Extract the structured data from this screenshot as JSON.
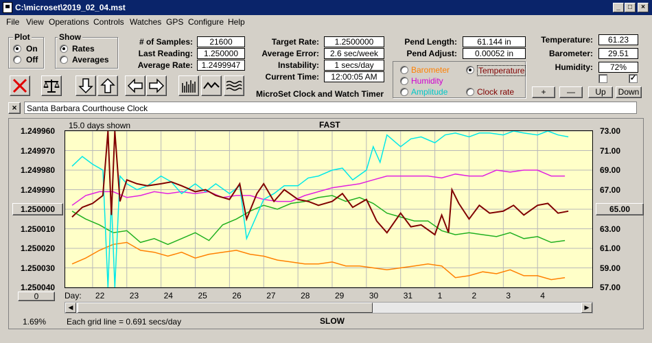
{
  "window": {
    "title": "C:\\microset\\2019_02_04.mst"
  },
  "menu": [
    "File",
    "View",
    "Operations",
    "Controls",
    "Watches",
    "GPS",
    "Configure",
    "Help"
  ],
  "plot_group": {
    "title": "Plot",
    "on": "On",
    "off": "Off",
    "selected": "On"
  },
  "show_group": {
    "title": "Show",
    "rates": "Rates",
    "averages": "Averages",
    "selected": "Rates"
  },
  "stats": {
    "samples_label": "# of Samples:",
    "samples": "21600",
    "last_label": "Last Reading:",
    "last": "1.250000",
    "avg_label": "Average Rate:",
    "avg": "1.2499947"
  },
  "rates": {
    "target_label": "Target Rate:",
    "target": "1.2500000",
    "err_label": "Average Error:",
    "err": "2.6 sec/week",
    "inst_label": "Instability:",
    "inst": "1 secs/day",
    "time_label": "Current Time:",
    "time": "12:00:05 AM"
  },
  "pend": {
    "length_label": "Pend Length:",
    "length": "61.144 in",
    "adjust_label": "Pend Adjust:",
    "adjust": "0.00052 in"
  },
  "env": {
    "temp_label": "Temperature:",
    "temp": "61.23",
    "baro_label": "Barometer:",
    "baro": "29.51",
    "hum_label": "Humidity:",
    "hum": "72%"
  },
  "series_select": {
    "barometer": "Barometer",
    "temperature": "Temperature",
    "humidity": "Humidity",
    "amplitude": "Amplitude",
    "clock_rate": "Clock rate",
    "selected": "Temperature"
  },
  "adjust_buttons": {
    "plus": "+",
    "minus": "—",
    "up": "Up",
    "down": "Down"
  },
  "program_title": "MicroSet Clock and Watch Timer",
  "clock_name": "Santa Barbara Courthouse Clock",
  "colors": {
    "barometer": "#ff8000",
    "humidity": "#e020e0",
    "amplitude": "#00e8e8",
    "temperature": "#800000",
    "clock_rate": "#20b020"
  },
  "icons": [
    "close-x-icon",
    "balance-scale-icon",
    "arrow-down-icon",
    "arrow-up-icon",
    "arrow-left-icon",
    "arrow-right-icon",
    "bar-graph-icon",
    "wave-icon",
    "multi-wave-icon"
  ],
  "chart_data": {
    "type": "line",
    "title": "FAST",
    "bottom_label": "SLOW",
    "days_shown": "15.0 days shown",
    "grid_note": "Each grid line = 0.691 secs/day",
    "percent": "1.69%",
    "xlabel": "Day:",
    "left_center_button": "1.250000",
    "right_center_button": "65.00",
    "bottom_left_button": "0",
    "x_ticks": [
      "22",
      "23",
      "24",
      "25",
      "26",
      "27",
      "28",
      "29",
      "30",
      "31",
      "1",
      "2",
      "3",
      "4"
    ],
    "y_left_ticks": [
      "1.249960",
      "1.249970",
      "1.249980",
      "1.249990",
      "1.250000",
      "1.250010",
      "1.250020",
      "1.250030",
      "1.250040"
    ],
    "y_right_ticks": [
      "73.00",
      "71.00",
      "69.00",
      "67.00",
      "65.00",
      "63.00",
      "61.00",
      "59.00",
      "57.00"
    ],
    "ylim_left": [
      1.24996,
      1.25004
    ],
    "ylim_right": [
      57,
      73
    ],
    "grid": true,
    "series": [
      {
        "name": "Temperature",
        "color": "#800000",
        "x": [
          21.4,
          21.7,
          22,
          22.3,
          22.45,
          22.55,
          22.65,
          22.8,
          23,
          23.3,
          23.6,
          24,
          24.3,
          24.6,
          25,
          25.3,
          25.6,
          26,
          26.3,
          26.5,
          26.8,
          27,
          27.3,
          27.6,
          28,
          28.3,
          28.6,
          29,
          29.3,
          29.6,
          30,
          30.3,
          30.6,
          31,
          31.3,
          31.6,
          32,
          32.2,
          32.4,
          32.5,
          32.7,
          33,
          33.3,
          33.6,
          34,
          34.3,
          34.6,
          35,
          35.3,
          35.6,
          35.9
        ],
        "y": [
          1.250004,
          1.249999,
          1.249997,
          1.249993,
          1.24996,
          1.250003,
          1.24996,
          1.249996,
          1.249985,
          1.249987,
          1.249988,
          1.249987,
          1.249986,
          1.249988,
          1.249991,
          1.24999,
          1.249993,
          1.249995,
          1.249987,
          1.250005,
          1.249992,
          1.249987,
          1.249996,
          1.24999,
          1.249995,
          1.249996,
          1.249998,
          1.249996,
          1.249992,
          1.249999,
          1.249995,
          1.250006,
          1.250012,
          1.250002,
          1.250009,
          1.250008,
          1.250013,
          1.250003,
          1.250012,
          1.24999,
          1.249997,
          1.250005,
          1.249998,
          1.250002,
          1.250001,
          1.249998,
          1.250003,
          1.249998,
          1.249997,
          1.250002,
          1.250001
        ]
      },
      {
        "name": "Clock rate",
        "color": "#20b020",
        "x": [
          21.4,
          21.8,
          22.2,
          22.6,
          23,
          23.4,
          23.8,
          24.2,
          24.6,
          25,
          25.4,
          25.8,
          26.2,
          26.6,
          27,
          27.4,
          27.8,
          28.2,
          28.6,
          29,
          29.4,
          29.8,
          30.2,
          30.6,
          31,
          31.4,
          31.8,
          32.2,
          32.6,
          33,
          33.4,
          33.8,
          34.2,
          34.6,
          35,
          35.4,
          35.8
        ],
        "y": [
          1.250001,
          1.250005,
          1.250008,
          1.250012,
          1.250011,
          1.250017,
          1.250015,
          1.250018,
          1.250015,
          1.250012,
          1.250016,
          1.250008,
          1.250005,
          1.250001,
          1.249998,
          1.25,
          1.249997,
          1.249996,
          1.249994,
          1.249993,
          1.249996,
          1.249994,
          1.249997,
          1.250002,
          1.250004,
          1.250006,
          1.250006,
          1.250011,
          1.250013,
          1.250012,
          1.250013,
          1.250014,
          1.250012,
          1.250015,
          1.250014,
          1.250017,
          1.250016
        ]
      },
      {
        "name": "Barometer",
        "color": "#ff8000",
        "x": [
          21.4,
          21.8,
          22.2,
          22.6,
          23,
          23.4,
          23.8,
          24.2,
          24.6,
          25,
          25.4,
          25.8,
          26.2,
          26.6,
          27,
          27.4,
          27.8,
          28.2,
          28.6,
          29,
          29.4,
          29.8,
          30.2,
          30.6,
          31,
          31.4,
          31.8,
          32.2,
          32.6,
          33,
          33.4,
          33.8,
          34.2,
          34.6,
          35,
          35.4,
          35.8
        ],
        "y": [
          1.250028,
          1.250025,
          1.250021,
          1.250018,
          1.250017,
          1.250021,
          1.250022,
          1.250024,
          1.250022,
          1.250025,
          1.250023,
          1.250022,
          1.250021,
          1.250023,
          1.250024,
          1.250026,
          1.250027,
          1.250028,
          1.250028,
          1.250027,
          1.250029,
          1.250029,
          1.25003,
          1.250031,
          1.25003,
          1.250029,
          1.250028,
          1.250029,
          1.250035,
          1.250034,
          1.250032,
          1.250033,
          1.250031,
          1.250034,
          1.250034,
          1.250036,
          1.250035
        ]
      },
      {
        "name": "Humidity",
        "color": "#e020e0",
        "x": [
          21.4,
          21.8,
          22.2,
          22.6,
          23,
          23.4,
          23.8,
          24.2,
          24.6,
          25,
          25.4,
          25.8,
          26.2,
          26.6,
          27,
          27.4,
          27.8,
          28.2,
          28.6,
          29,
          29.4,
          29.8,
          30.2,
          30.6,
          31,
          31.4,
          31.8,
          32.2,
          32.6,
          33,
          33.4,
          33.8,
          34.2,
          34.6,
          35,
          35.4,
          35.8
        ],
        "y": [
          1.249998,
          1.249993,
          1.249991,
          1.249991,
          1.249994,
          1.249993,
          1.249991,
          1.249992,
          1.249991,
          1.249992,
          1.249991,
          1.249994,
          1.249993,
          1.249993,
          1.249995,
          1.249996,
          1.249996,
          1.249993,
          1.249991,
          1.249989,
          1.249988,
          1.249987,
          1.249985,
          1.249983,
          1.249983,
          1.249983,
          1.249983,
          1.249984,
          1.249982,
          1.249983,
          1.249983,
          1.24998,
          1.249981,
          1.24998,
          1.24998,
          1.249983,
          1.249983
        ]
      },
      {
        "name": "Amplitude",
        "color": "#00e8e8",
        "x": [
          21.4,
          21.7,
          22,
          22.3,
          22.45,
          22.55,
          22.65,
          22.8,
          23,
          23.3,
          23.6,
          24,
          24.3,
          24.6,
          25,
          25.3,
          25.6,
          26,
          26.3,
          26.5,
          26.8,
          27,
          27.3,
          27.6,
          28,
          28.3,
          28.6,
          29,
          29.3,
          29.6,
          30,
          30.2,
          30.4,
          30.6,
          31,
          31.3,
          31.6,
          32,
          32.3,
          32.6,
          33,
          33.3,
          33.6,
          34,
          34.3,
          34.6,
          35,
          35.3,
          35.6,
          35.9
        ],
        "y": [
          1.249978,
          1.249973,
          1.249977,
          1.24998,
          1.25004,
          1.249995,
          1.25004,
          1.249983,
          1.249987,
          1.24999,
          1.249988,
          1.249983,
          1.249986,
          1.249992,
          1.249987,
          1.249991,
          1.249987,
          1.249992,
          1.249988,
          1.250015,
          1.250003,
          1.249995,
          1.249992,
          1.249988,
          1.249988,
          1.249984,
          1.249983,
          1.24998,
          1.249979,
          1.249985,
          1.24998,
          1.249968,
          1.249976,
          1.249962,
          1.249968,
          1.249964,
          1.249963,
          1.249966,
          1.249962,
          1.249961,
          1.249963,
          1.249961,
          1.249961,
          1.249962,
          1.24996,
          1.249961,
          1.249962,
          1.24996,
          1.249962,
          1.249963
        ]
      }
    ]
  }
}
